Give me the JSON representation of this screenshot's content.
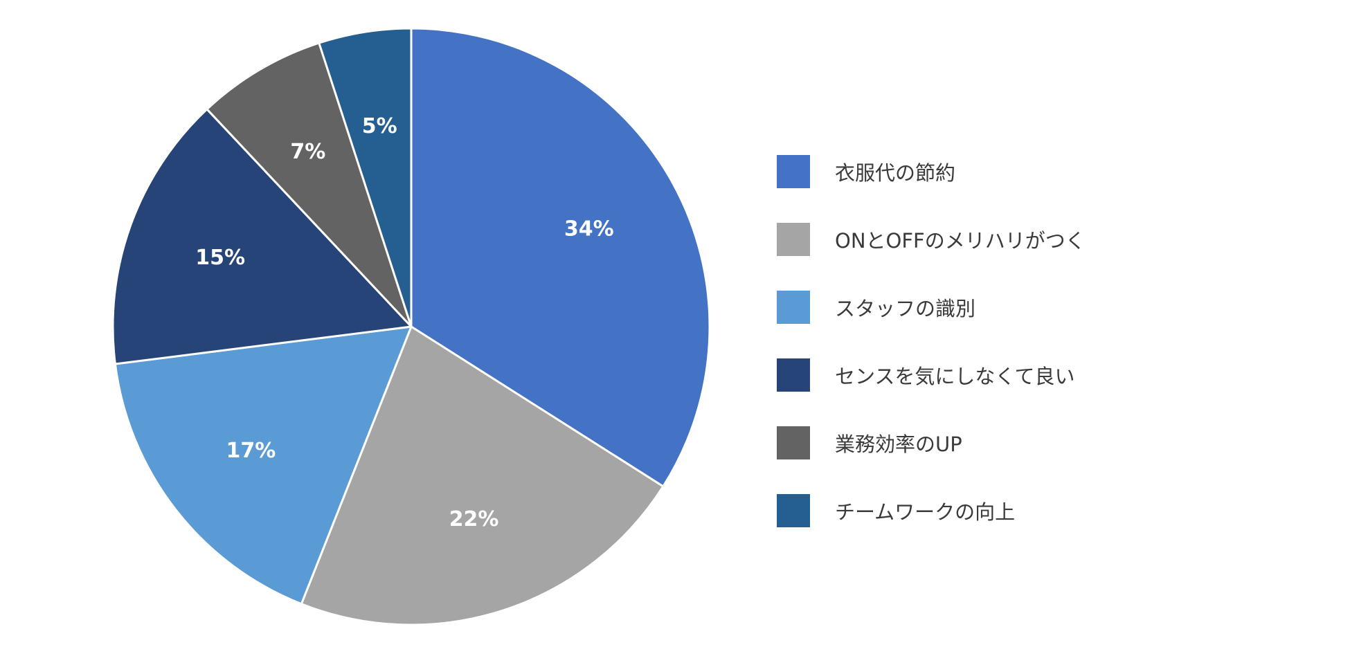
{
  "chart_data": {
    "type": "pie",
    "title": "",
    "legend_position": "right",
    "series": [
      {
        "categories": [
          "衣服代の節約",
          "ONとOFFのメリハリがつく",
          "スタッフの識別",
          "センスを気にしなくて良い",
          "業務効率のUP",
          "チームワークの向上"
        ],
        "values": [
          34,
          22,
          17,
          15,
          7,
          5
        ],
        "labels": [
          "34%",
          "22%",
          "17%",
          "15%",
          "7%",
          "5%"
        ],
        "colors": [
          "#4472C4",
          "#A5A5A5",
          "#5B9BD5",
          "#264478",
          "#636363",
          "#255E91"
        ]
      }
    ],
    "start": "12 o'clock",
    "direction": "clockwise"
  }
}
